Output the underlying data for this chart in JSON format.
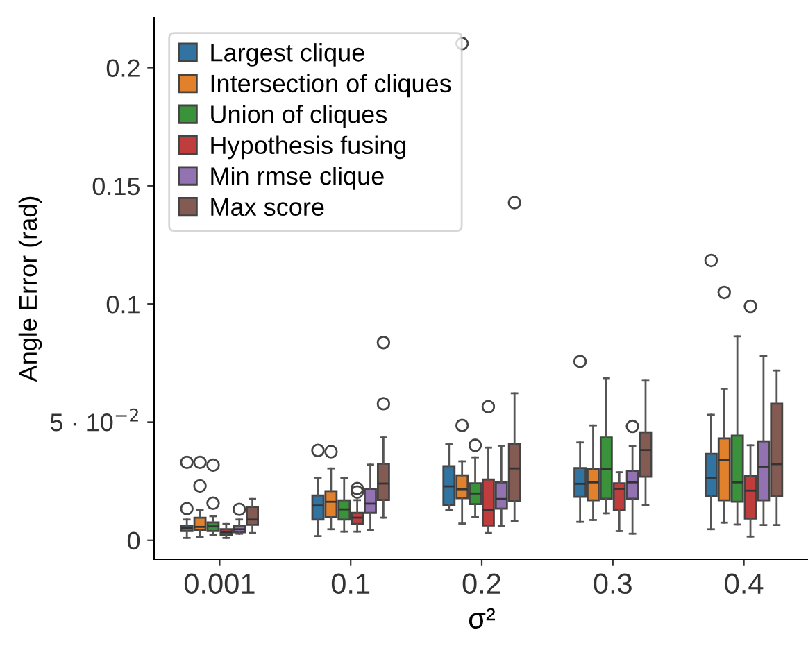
{
  "chart_data": {
    "type": "box",
    "ylabel": "Angle Error (rad)",
    "xlabel": "σ²",
    "categories": [
      "0.001",
      "0.1",
      "0.2",
      "0.3",
      "0.4"
    ],
    "ylim": [
      -0.008,
      0.221
    ],
    "yticks": [
      0,
      {
        "value": 0.05,
        "label": "5 · 10$^{−2}$"
      },
      0.1,
      0.15,
      0.2
    ],
    "legend": "top left",
    "grid": false,
    "series": [
      {
        "name": "Largest clique",
        "color": "#3274a1",
        "boxes": [
          {
            "low": 0.001,
            "q1": 0.0039,
            "median": 0.0051,
            "q3": 0.0063,
            "high": 0.0088,
            "outliers": [
              0.033,
              0.0134
            ]
          },
          {
            "low": 0.0018,
            "q1": 0.0088,
            "median": 0.0147,
            "q3": 0.019,
            "high": 0.0265,
            "outliers": [
              0.038
            ]
          },
          {
            "low": 0.0129,
            "q1": 0.0149,
            "median": 0.0228,
            "q3": 0.0314,
            "high": 0.0406
          },
          {
            "low": 0.0078,
            "q1": 0.0184,
            "median": 0.0239,
            "q3": 0.0306,
            "high": 0.0414,
            "outliers": [
              0.0757
            ]
          },
          {
            "low": 0.0047,
            "q1": 0.0186,
            "median": 0.0265,
            "q3": 0.0366,
            "high": 0.0531,
            "outliers": [
              0.1184
            ]
          }
        ]
      },
      {
        "name": "Intersection of cliques",
        "color": "#e1812c",
        "boxes": [
          {
            "low": 0.0014,
            "q1": 0.0043,
            "median": 0.0057,
            "q3": 0.0096,
            "high": 0.0128,
            "outliers": [
              0.033,
              0.023
            ]
          },
          {
            "low": 0.0047,
            "q1": 0.0098,
            "median": 0.0163,
            "q3": 0.0208,
            "high": 0.0304,
            "outliers": [
              0.0375
            ]
          },
          {
            "low": 0.0071,
            "q1": 0.0178,
            "median": 0.0216,
            "q3": 0.0275,
            "high": 0.0334,
            "outliers": [
              0.0486,
              0.2102
            ]
          },
          {
            "low": 0.0086,
            "q1": 0.0169,
            "median": 0.0245,
            "q3": 0.0302,
            "high": 0.0486
          },
          {
            "low": 0.0075,
            "q1": 0.0169,
            "median": 0.0339,
            "q3": 0.0431,
            "high": 0.0641,
            "outliers": [
              0.1049
            ]
          }
        ]
      },
      {
        "name": "Union of cliques",
        "color": "#3a923a",
        "boxes": [
          {
            "low": 0.0022,
            "q1": 0.0039,
            "median": 0.0059,
            "q3": 0.0076,
            "high": 0.0102,
            "outliers": [
              0.0318,
              0.0157
            ]
          },
          {
            "low": 0.0037,
            "q1": 0.0088,
            "median": 0.0131,
            "q3": 0.0169,
            "high": 0.0263
          },
          {
            "low": 0.0098,
            "q1": 0.0153,
            "median": 0.0198,
            "q3": 0.0241,
            "high": 0.0351,
            "outliers": [
              0.0402
            ]
          },
          {
            "low": 0.0114,
            "q1": 0.0176,
            "median": 0.0302,
            "q3": 0.0435,
            "high": 0.0686
          },
          {
            "low": 0.0067,
            "q1": 0.0163,
            "median": 0.0245,
            "q3": 0.0443,
            "high": 0.0863
          }
        ]
      },
      {
        "name": "Hypothesis fusing",
        "color": "#c03d3e",
        "boxes": [
          {
            "low": 0.001,
            "q1": 0.0022,
            "median": 0.0034,
            "q3": 0.0047,
            "high": 0.0069
          },
          {
            "low": 0.0037,
            "q1": 0.0069,
            "median": 0.0096,
            "q3": 0.0116,
            "high": 0.017,
            "outliers": [
              0.0219,
              0.0204
            ]
          },
          {
            "low": 0.0031,
            "q1": 0.0063,
            "median": 0.0128,
            "q3": 0.0257,
            "high": 0.0392,
            "outliers": [
              0.0565
            ]
          },
          {
            "low": 0.0039,
            "q1": 0.0128,
            "median": 0.0218,
            "q3": 0.0241,
            "high": 0.0288
          },
          {
            "low": 0.0016,
            "q1": 0.0092,
            "median": 0.021,
            "q3": 0.0272,
            "high": 0.0402,
            "outliers": [
              0.099
            ]
          }
        ]
      },
      {
        "name": "Min rmse clique",
        "color": "#9372b2",
        "boxes": [
          {
            "low": 0.0028,
            "q1": 0.0034,
            "median": 0.0047,
            "q3": 0.0063,
            "high": 0.0088,
            "outliers": [
              0.0131
            ]
          },
          {
            "low": 0.0043,
            "q1": 0.0116,
            "median": 0.0155,
            "q3": 0.0218,
            "high": 0.032
          },
          {
            "low": 0.0061,
            "q1": 0.0134,
            "median": 0.0175,
            "q3": 0.0245,
            "high": 0.04
          },
          {
            "low": 0.0028,
            "q1": 0.0176,
            "median": 0.0245,
            "q3": 0.0292,
            "high": 0.0398,
            "outliers": [
              0.0482
            ]
          },
          {
            "low": 0.0065,
            "q1": 0.0169,
            "median": 0.0312,
            "q3": 0.0419,
            "high": 0.0781
          }
        ]
      },
      {
        "name": "Max score",
        "color": "#845b53",
        "boxes": [
          {
            "low": 0.0031,
            "q1": 0.0066,
            "median": 0.0088,
            "q3": 0.0141,
            "high": 0.0175
          },
          {
            "low": 0.0096,
            "q1": 0.0171,
            "median": 0.024,
            "q3": 0.0324,
            "high": 0.0435,
            "outliers": [
              0.0578,
              0.0837
            ]
          },
          {
            "low": 0.0081,
            "q1": 0.0167,
            "median": 0.0304,
            "q3": 0.0406,
            "high": 0.0622,
            "outliers": [
              0.1429
            ]
          },
          {
            "low": 0.0149,
            "q1": 0.0269,
            "median": 0.0382,
            "q3": 0.0457,
            "high": 0.0678
          },
          {
            "low": 0.0065,
            "q1": 0.0186,
            "median": 0.0322,
            "q3": 0.0578,
            "high": 0.0718
          }
        ]
      }
    ]
  }
}
